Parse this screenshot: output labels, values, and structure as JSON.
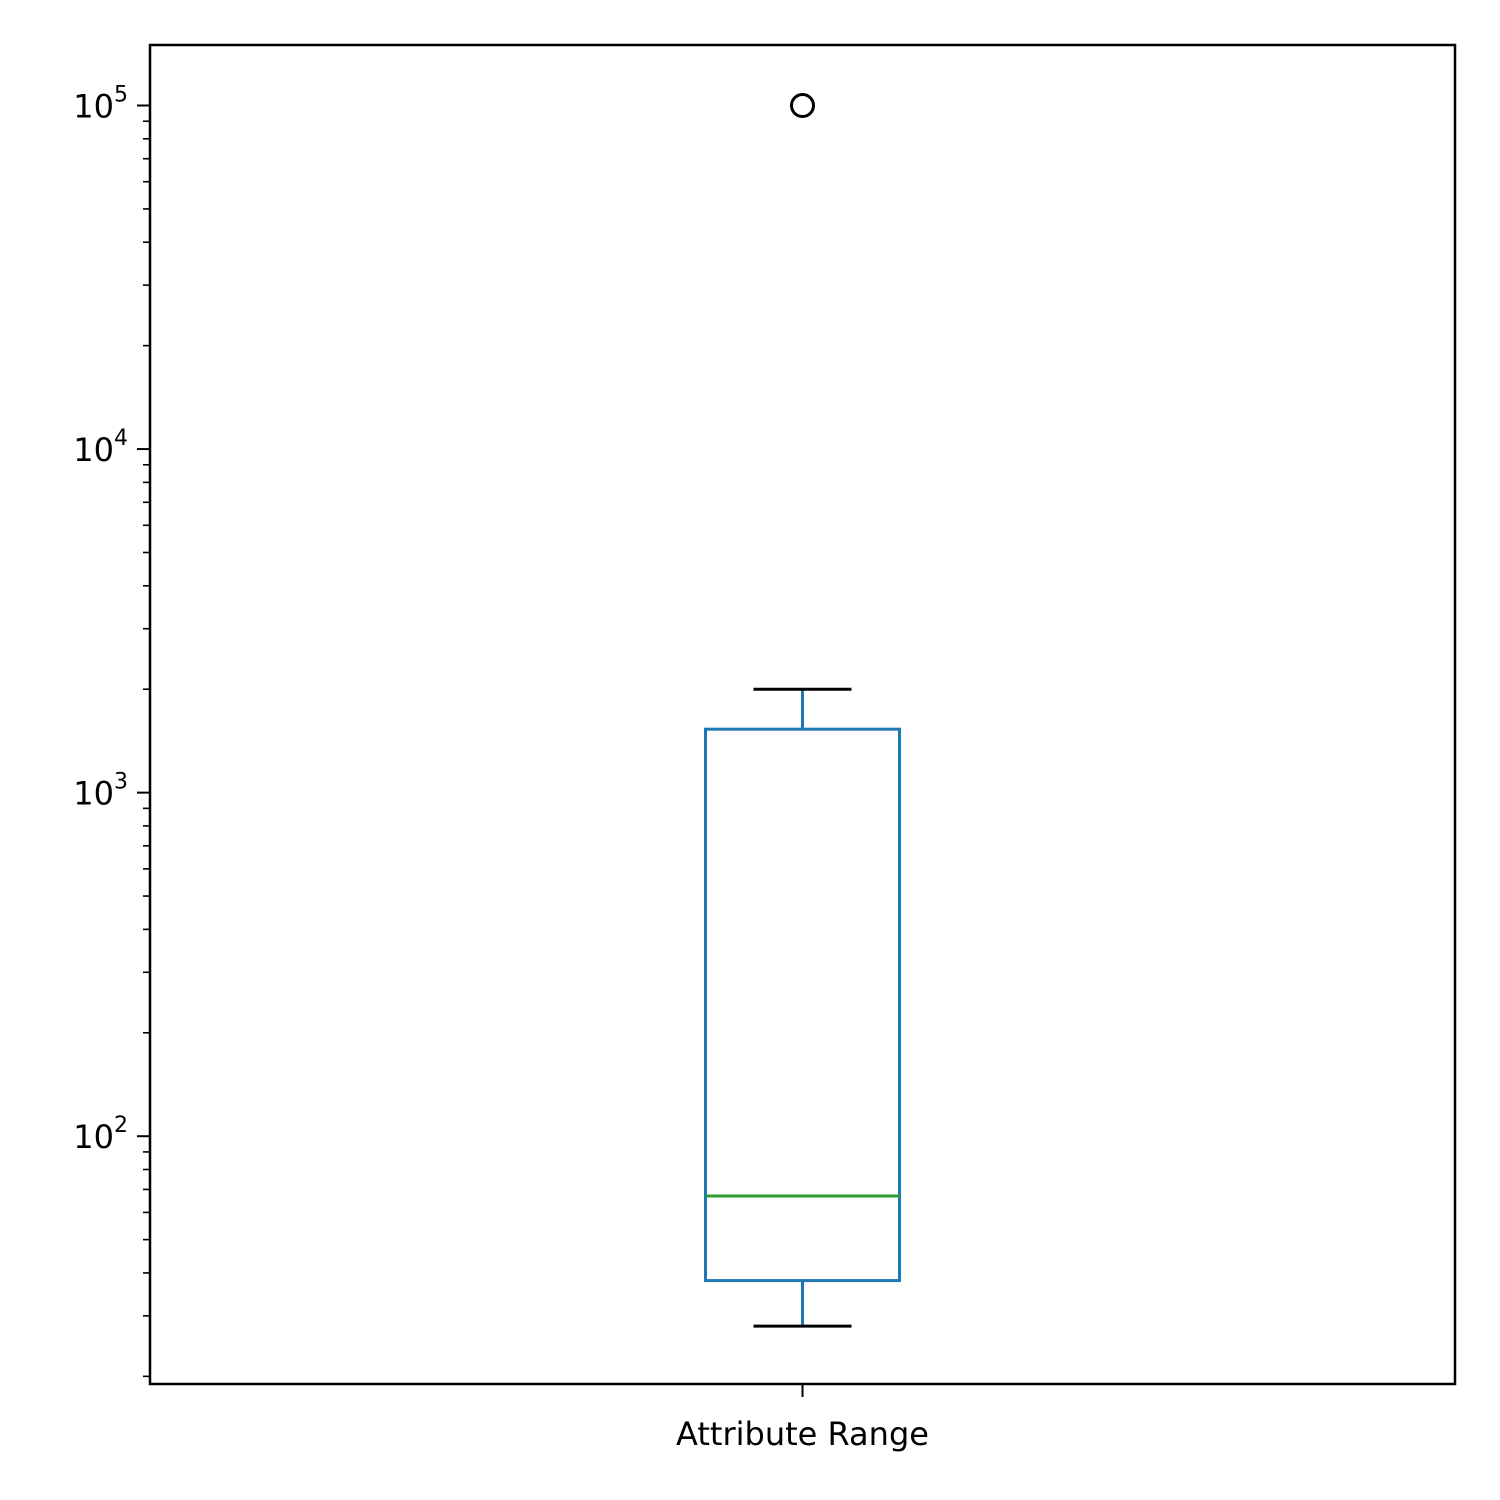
{
  "chart_data": {
    "type": "box",
    "title": "",
    "xlabel": "",
    "ylabel": "",
    "categories": [
      "Attribute Range"
    ],
    "y_scale": "log",
    "ylim": [
      19,
      150000
    ],
    "y_major_ticks": [
      100,
      1000,
      10000,
      100000
    ],
    "y_tick_labels": [
      {
        "base": "10",
        "exp": "2"
      },
      {
        "base": "10",
        "exp": "3"
      },
      {
        "base": "10",
        "exp": "4"
      },
      {
        "base": "10",
        "exp": "5"
      }
    ],
    "boxes": [
      {
        "category": "Attribute Range",
        "whisker_low": 28,
        "q1": 38,
        "median": 67,
        "q3": 1530,
        "whisker_high": 2000,
        "outliers": [
          100000
        ]
      }
    ],
    "grid": false,
    "legend": "none",
    "colors": {
      "box": "#1f77b4",
      "median": "#2ca02c",
      "whisker_cap": "#000000",
      "outlier": "#000000",
      "axes": "#000000"
    }
  }
}
